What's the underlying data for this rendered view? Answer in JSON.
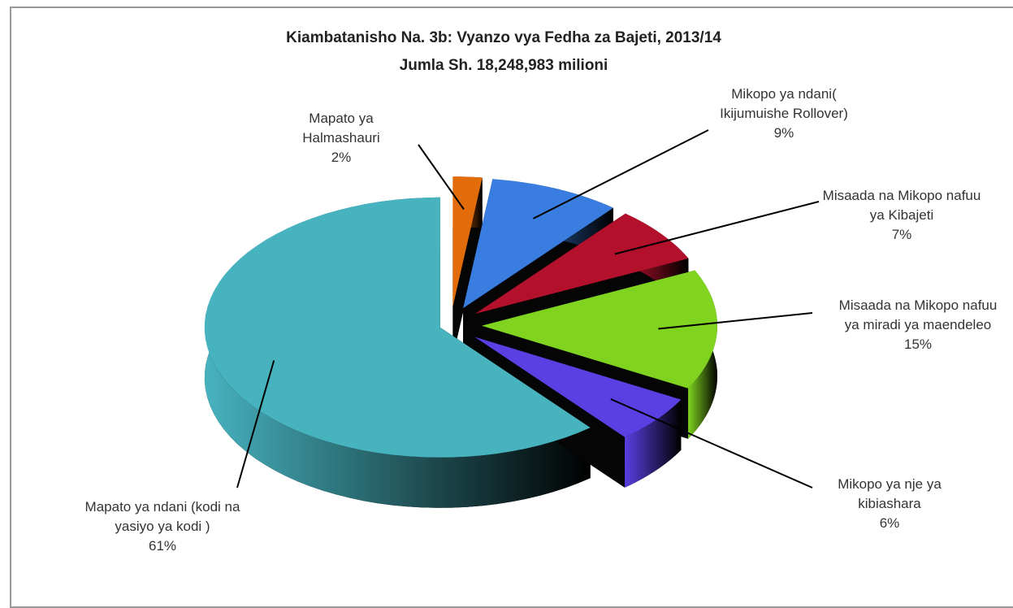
{
  "chart_data": {
    "type": "pie",
    "title": "Kiambatanisho Na. 3b: Vyanzo vya Fedha za Bajeti, 2013/14",
    "subtitle": "Jumla Sh. 18,248,983 milioni",
    "categories": [
      "Mapato ya Halmashauri",
      "Mikopo ya ndani( Ikijumuishe Rollover)",
      "Misaada na Mikopo nafuu ya Kibajeti",
      "Misaada na Mikopo nafuu ya miradi ya maendeleo",
      "Mikopo ya nje ya kibiashara",
      "Mapato ya ndani (kodi na yasiyo ya kodi )"
    ],
    "values": [
      2,
      9,
      7,
      15,
      6,
      61
    ],
    "value_labels": [
      "2%",
      "9%",
      "7%",
      "15%",
      "6%",
      "61%"
    ],
    "colors": [
      "#e36c0a",
      "#3a7de0",
      "#b3102c",
      "#80d420",
      "#5a3fe2",
      "#47b3bf"
    ]
  }
}
